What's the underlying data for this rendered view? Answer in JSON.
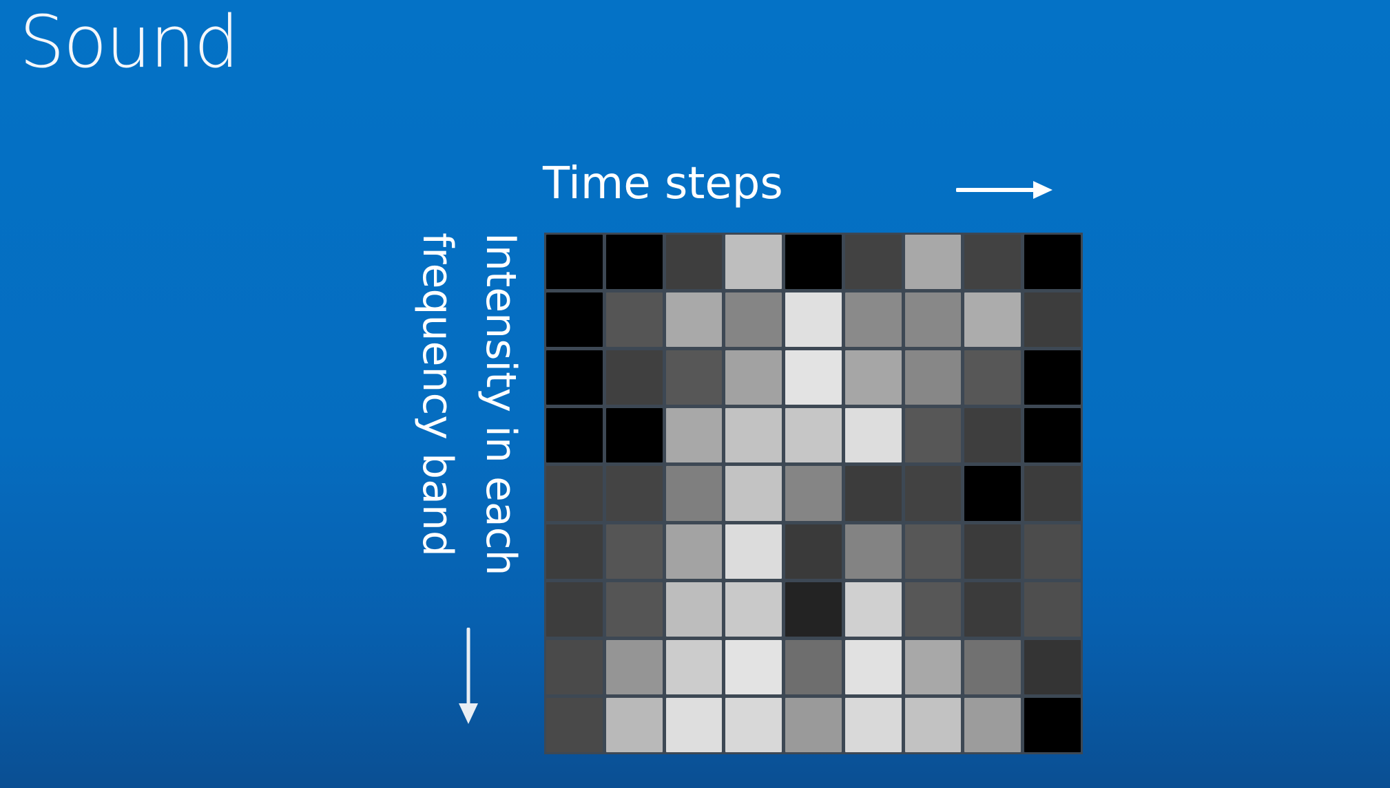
{
  "slide": {
    "title": "Sound"
  },
  "diagram": {
    "x_axis_label": "Time steps",
    "y_axis_label_lines": [
      "Intensity in each",
      "frequency band"
    ],
    "x_arrow_icon": "arrow-right-icon",
    "y_arrow_icon": "arrow-down-icon"
  },
  "grid": {
    "rows": 9,
    "columns": 9,
    "cell_gray_levels": [
      [
        "#000000",
        "#000000",
        "#3e3e3e",
        "#bebebe",
        "#000000",
        "#424242",
        "#a8a8a8",
        "#424242",
        "#000000"
      ],
      [
        "#000000",
        "#555555",
        "#a9a9a9",
        "#858585",
        "#e0e0e0",
        "#8a8a8a",
        "#888888",
        "#acacac",
        "#3d3d3d"
      ],
      [
        "#000000",
        "#404040",
        "#575757",
        "#a2a2a2",
        "#e3e3e3",
        "#a6a6a6",
        "#878787",
        "#575757",
        "#000000"
      ],
      [
        "#000000",
        "#000000",
        "#a8a8a8",
        "#c2c2c2",
        "#c6c6c6",
        "#dddddd",
        "#575757",
        "#3e3e3e",
        "#000000"
      ],
      [
        "#414141",
        "#444444",
        "#7f7f7f",
        "#c3c3c3",
        "#858585",
        "#3c3c3c",
        "#424242",
        "#000000",
        "#3c3c3c"
      ],
      [
        "#3d3d3d",
        "#555555",
        "#a3a3a3",
        "#dcdcdc",
        "#3a3a3a",
        "#838383",
        "#575757",
        "#3b3b3b",
        "#4c4c4c"
      ],
      [
        "#3d3d3d",
        "#555555",
        "#bdbdbd",
        "#c9c9c9",
        "#232323",
        "#d0d0d0",
        "#575757",
        "#3b3b3b",
        "#4e4e4e"
      ],
      [
        "#4a4a4a",
        "#959595",
        "#cccccc",
        "#e3e3e3",
        "#6e6e6e",
        "#e1e1e1",
        "#a8a8a8",
        "#717171",
        "#343434"
      ],
      [
        "#494949",
        "#b9b9b9",
        "#dedede",
        "#d8d8d8",
        "#9a9a9a",
        "#d9d9d9",
        "#c2c2c2",
        "#9c9c9c",
        "#000000"
      ]
    ]
  }
}
